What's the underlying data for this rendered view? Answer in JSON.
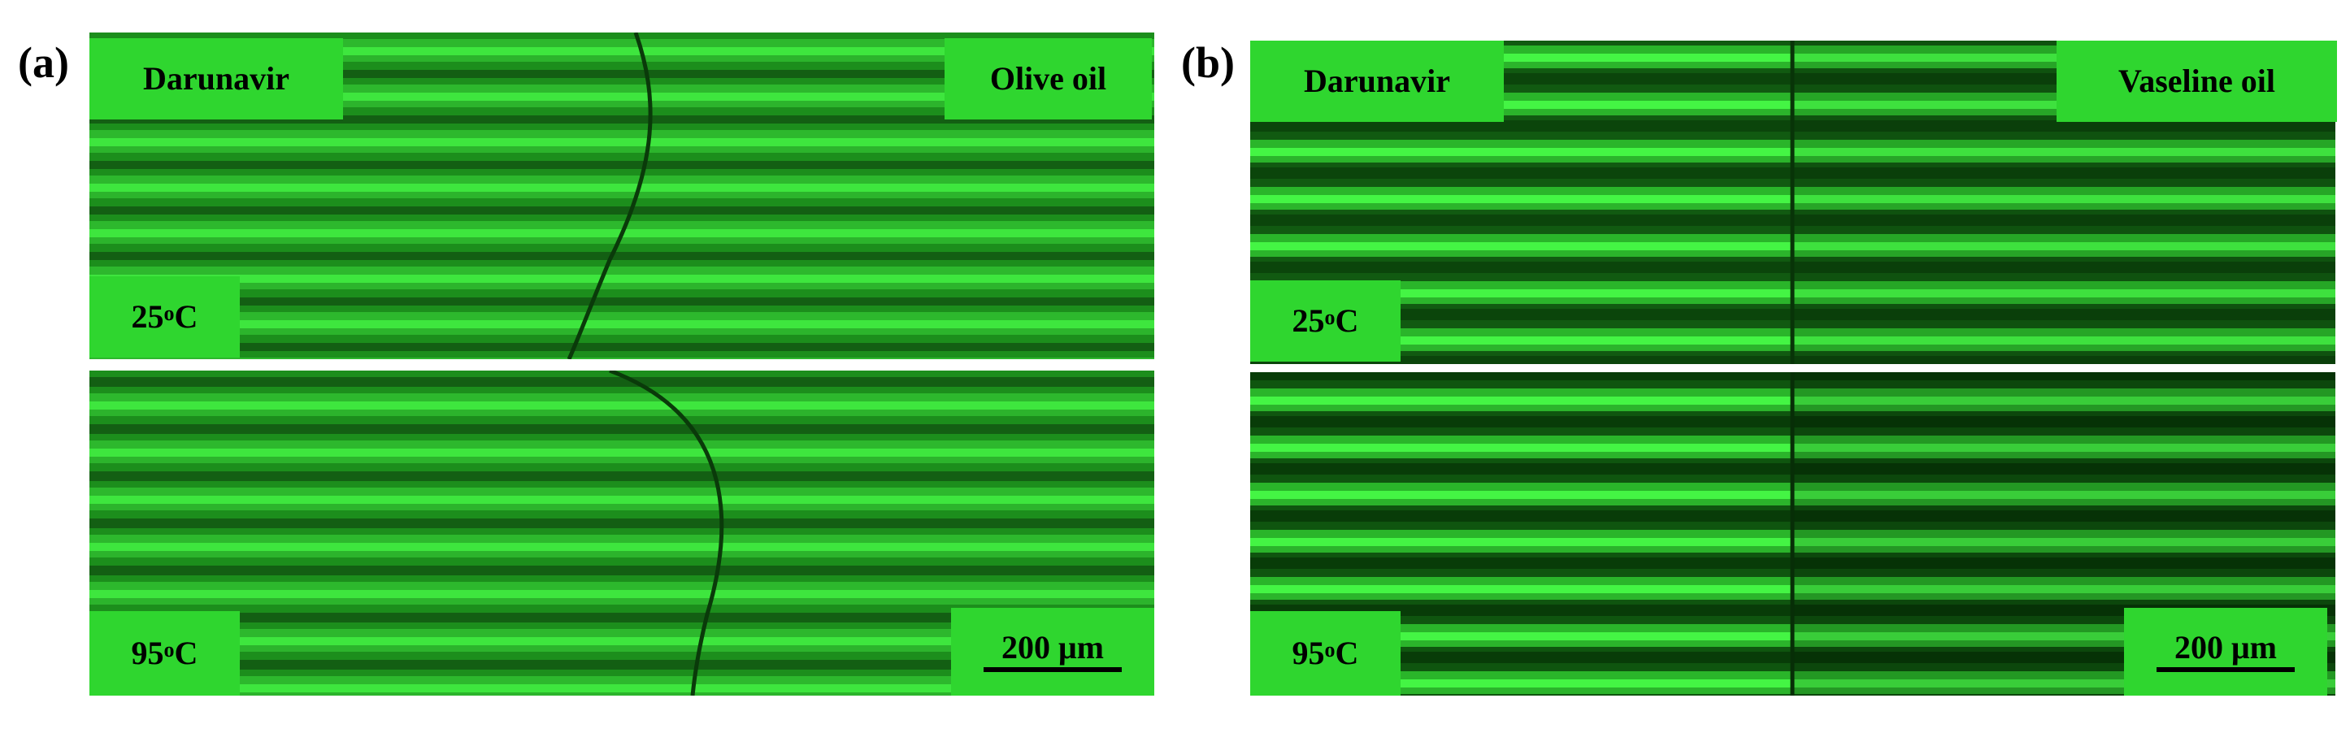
{
  "panel_a": {
    "letter": "(a)",
    "left_label": "Darunavir",
    "right_label": "Olive oil",
    "top_temp_base": "25",
    "bottom_temp_base": "95",
    "temp_degree": "o",
    "temp_unit": "C",
    "scale_text": "200 μm"
  },
  "panel_b": {
    "letter": "(b)",
    "left_label": "Darunavir",
    "right_label": "Vaseline oil",
    "top_temp_base": "25",
    "bottom_temp_base": "95",
    "temp_degree": "o",
    "temp_unit": "C",
    "scale_text": "200 μm"
  },
  "colors": {
    "label_bg": "#2fd62f",
    "fringe_bright": "#3cf53c",
    "fringe_dark": "#0c4d0c",
    "interface_line": "#0a3a0a"
  }
}
